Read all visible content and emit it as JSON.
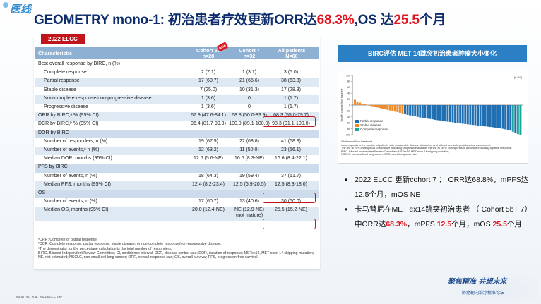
{
  "logo": {
    "text": "医线"
  },
  "title": {
    "part1": "GEOMETRY mono-1: 初治患者疗效更新ORR达",
    "orr": "68.3%",
    "part2": ",OS 达",
    "os": "25.5",
    "part3": "个月"
  },
  "table": {
    "tag": "2022 ELCC",
    "new_badge": "NEW",
    "headers": {
      "characteristic": "Characteristic",
      "c1": "Cohort 5b\nn=28",
      "c2": "Cohort 7\nn=32",
      "c3": "All patients\nN=60"
    },
    "rows": [
      {
        "label": "Best overall response by BIRC, n (%)",
        "c1": "",
        "c2": "",
        "c3": "",
        "indent": false,
        "style": "plain"
      },
      {
        "label": "Complete response",
        "c1": "2 (7.1)",
        "c2": "1 (3.1)",
        "c3": "3 (5.0)",
        "indent": true,
        "style": "plain"
      },
      {
        "label": "Partial response",
        "c1": "17 (60.7)",
        "c2": "21 (65.6)",
        "c3": "38 (63.3)",
        "indent": true,
        "style": "alt"
      },
      {
        "label": "Stable disease",
        "c1": "7 (25.0)",
        "c2": "10 (31.3)",
        "c3": "17 (28.3)",
        "indent": true,
        "style": "plain"
      },
      {
        "label": "Non-complete response/non-progressive disease",
        "c1": "1 (3.6)",
        "c2": "0",
        "c3": "1 (1.7)",
        "indent": true,
        "style": "alt"
      },
      {
        "label": "Progressive disease",
        "c1": "1 (3.6)",
        "c2": "0",
        "c3": "1 (1.7)",
        "indent": true,
        "style": "plain"
      },
      {
        "label": "ORR by BIRC,ᵃ % (95% CI)",
        "c1": "67.9 (47.6-84.1)",
        "c2": "68.8 (50.0-83.9)",
        "c3": "68.3 (55.0-79.7)",
        "indent": false,
        "style": "alt"
      },
      {
        "label": "DCR by BIRC,ᵇ % (95% CI)",
        "c1": "96.4 (81.7-99.9)",
        "c2": "100.0 (89.1-100.0)",
        "c3": "98.3 (91.1-100.0)",
        "indent": false,
        "style": "plain"
      },
      {
        "label": "DOR by BIRC",
        "c1": "",
        "c2": "",
        "c3": "",
        "indent": false,
        "style": "sec"
      },
      {
        "label": "Number of responders, n (%)",
        "c1": "19 (67.9)",
        "c2": "22 (68.8)",
        "c3": "41 (68.3)",
        "indent": true,
        "style": "plain"
      },
      {
        "label": "Number of events,ᶜ n (%)",
        "c1": "12 (63.2)",
        "c2": "11 (50.0)",
        "c3": "23 (56.1)",
        "indent": true,
        "style": "alt"
      },
      {
        "label": "Median DOR, months (95% CI)",
        "c1": "12.6 (5.6-NE)",
        "c2": "16.6 (8.3-NE)",
        "c3": "16.6 (8.4-22.1)",
        "indent": true,
        "style": "plain"
      },
      {
        "label": "PFS by BIRC",
        "c1": "",
        "c2": "",
        "c3": "",
        "indent": false,
        "style": "sec"
      },
      {
        "label": "Number of events, n (%)",
        "c1": "18 (64.3)",
        "c2": "19 (59.4)",
        "c3": "37 (61.7)",
        "indent": true,
        "style": "plain"
      },
      {
        "label": "Median PFS, months (95% CI)",
        "c1": "12.4 (8.2-23.4)",
        "c2": "12.5 (6.9-20.5)",
        "c3": "12.5 (8.3-18.0)",
        "indent": true,
        "style": "alt"
      },
      {
        "label": "OS",
        "c1": "",
        "c2": "",
        "c3": "",
        "indent": false,
        "style": "sec"
      },
      {
        "label": "Number of events, n (%)",
        "c1": "17 (60.7)",
        "c2": "13 (40.6)",
        "c3": "30 (50.0)",
        "indent": true,
        "style": "plain"
      },
      {
        "label": "Median OS, months (95% CI)",
        "c1": "20.8 (12.4-NE)",
        "c2": "NE (12.9-NE)\n(not mature)",
        "c3": "25.5 (15.2-NE)",
        "indent": true,
        "style": "alt"
      }
    ],
    "footnotes": "ᵃORR: Complete or partial response.\nᵇDCR: Complete response, partial response, stable disease, or non-complete response/non-progressive disease.\nᶜThe denominator for the percentage calculation is the total number of responders.\nBIRC, Blinded Independent Review Committee; CI, confidence interval; DCR, disease control rate; DOR, duration of response; METex14, MET exon 14 skipping mutation; NE, not estimated; NSCLC, non-small cell lung cancer; ORR, overall response rate; OS, overall survival; PFS, progression-free survival."
  },
  "reference": "Jurgan W., et al.   2022 ELCC 29P",
  "birc_title": "BIRC评估 MET 14跳突初治患者肿瘤大小变化",
  "waterfall": {
    "ylabel": "Best % change from baseline",
    "n_label": "(n=67)",
    "yticks": [
      "100",
      "80",
      "60",
      "40",
      "20",
      "0",
      "-20",
      "-40",
      "-60",
      "-80",
      "-100"
    ],
    "legend": [
      {
        "name": "Partial response",
        "color": "#1f6fb2"
      },
      {
        "name": "Stable disease",
        "color": "#f08a24"
      },
      {
        "name": "Complete response",
        "color": "#18a79a"
      }
    ],
    "notes": "*Patients still on treatment.\nn corresponds to the number of patients with measurable disease at baseline and at least one valid post-baseline assessment.\nThe line at 20% corresponds to a change indicating progressive disease; the line at -30% corresponds to a change indicating a partial response.\nBIRC, Blinded Independent Review Committee; METex14, MET exon 14 skipping mutation;\nNSCLC, non-small cell lung cancer; ORR, overall response rate."
  },
  "chart_data": {
    "type": "bar",
    "title": "",
    "ylabel": "Best % change from baseline",
    "ylim": [
      -100,
      100
    ],
    "n": 67,
    "values": [
      18,
      12,
      8,
      5,
      3,
      1,
      -2,
      -4,
      -6,
      -8,
      -10,
      -12,
      -14,
      -16,
      -18,
      -20,
      -22,
      -24,
      -26,
      -28,
      -30,
      -33,
      -35,
      -37,
      -38,
      -40,
      -42,
      -43,
      -44,
      -46,
      -47,
      -48,
      -50,
      -51,
      -52,
      -54,
      -55,
      -56,
      -57,
      -58,
      -60,
      -61,
      -62,
      -63,
      -64,
      -65,
      -66,
      -67,
      -68,
      -69,
      -70,
      -71,
      -72,
      -73,
      -74,
      -75,
      -76,
      -77,
      -78,
      -80,
      -82,
      -84,
      -86,
      -90,
      -94,
      -98,
      -100
    ],
    "categories_by_response": [
      "SD",
      "SD",
      "SD",
      "SD",
      "SD",
      "SD",
      "SD",
      "SD",
      "SD",
      "SD",
      "SD",
      "SD",
      "SD",
      "SD",
      "SD",
      "SD",
      "SD",
      "SD",
      "SD",
      "SD",
      "PR",
      "PR",
      "PR",
      "PR",
      "PR",
      "PR",
      "PR",
      "PR",
      "PR",
      "PR",
      "PR",
      "PR",
      "PR",
      "PR",
      "PR",
      "PR",
      "PR",
      "PR",
      "PR",
      "PR",
      "PR",
      "PR",
      "PR",
      "PR",
      "PR",
      "PR",
      "PR",
      "PR",
      "PR",
      "PR",
      "PR",
      "PR",
      "PR",
      "PR",
      "PR",
      "PR",
      "PR",
      "PR",
      "PR",
      "PR",
      "PR",
      "PR",
      "PR",
      "CR",
      "PR",
      "CR",
      "CR"
    ],
    "reference_lines": [
      20,
      -30
    ],
    "grid": false
  },
  "bullets": [
    {
      "text": "2022 ELCC 更新cohort 7 ： ORR达68.8%，mPFS达12.5个月，mOS NE"
    },
    {
      "part1": "卡马替尼在MET ex14跳突初治患者 （ Cohort 5b+ 7）中ORR达",
      "orr": "68.3%",
      "part2": "，mPFS ",
      "pfs": "12.5",
      "part3": "个月，mOS ",
      "os": "25.5",
      "part4": "个月"
    }
  ],
  "brand": {
    "slogan": "聚焦精准  共想未来",
    "name": "肺癌靶向治疗精准论坛"
  }
}
